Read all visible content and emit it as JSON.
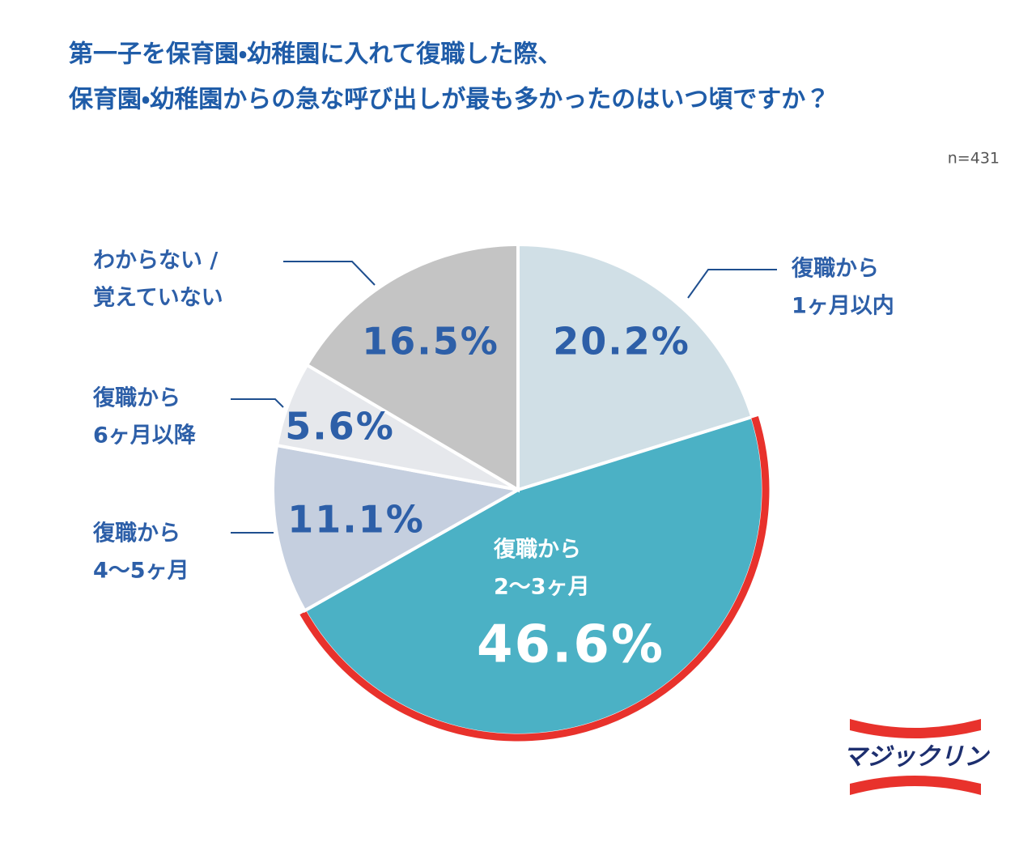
{
  "chart_data": {
    "type": "pie",
    "title": [
      "第一子を保育園・幼稚園に入れて復職した際、",
      "保育園・幼稚園からの急な呼び出しが最も多かったのはいつ頃ですか？"
    ],
    "note": "n=431",
    "categories": [
      [
        "復職から",
        "1ヶ月以内"
      ],
      [
        "復職から",
        "2〜3ヶ月"
      ],
      [
        "復職から",
        "4〜5ヶ月"
      ],
      [
        "復職から",
        "6ヶ月以降"
      ],
      [
        "わからない /",
        "覚えていない"
      ]
    ],
    "values": [
      20.2,
      46.6,
      11.1,
      5.6,
      16.5
    ],
    "value_labels": [
      "20.2%",
      "46.6%",
      "11.1%",
      "5.6%",
      "16.5%"
    ],
    "colors": [
      "#d0dfe6",
      "#4bb1c5",
      "#c5cfdf",
      "#e6e8ec",
      "#c4c4c4"
    ],
    "highlight": 1,
    "highlight_color": "#e8322c",
    "logo": "マジックリン"
  }
}
